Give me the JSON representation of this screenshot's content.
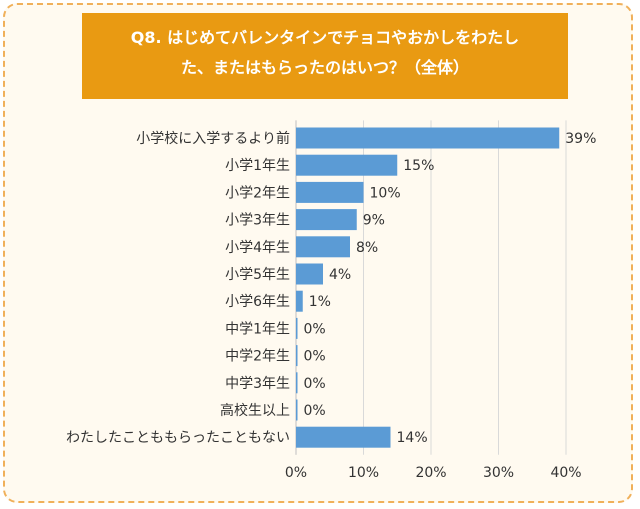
{
  "title": {
    "line1": "Q8. はじめてバレンタインでチョコやおかしをわたし",
    "line2": "た、またはもらったのはいつ？（全体）"
  },
  "colors": {
    "bar": "#5b9bd5",
    "title_bg": "#e99a12",
    "border": "#f0b05a",
    "background": "#fffaf0",
    "grid": "#d9d9d9"
  },
  "chart_data": {
    "type": "bar",
    "orientation": "horizontal",
    "categories": [
      "小学校に入学するより前",
      "小学1年生",
      "小学2年生",
      "小学3年生",
      "小学4年生",
      "小学5年生",
      "小学6年生",
      "中学1年生",
      "中学2年生",
      "中学3年生",
      "高校生以上",
      "わたしたことももらったこともない"
    ],
    "values": [
      39,
      15,
      10,
      9,
      8,
      4,
      1,
      0,
      0,
      0,
      0,
      14
    ],
    "data_labels": [
      "39%",
      "15%",
      "10%",
      "9%",
      "8%",
      "4%",
      "1%",
      "0%",
      "0%",
      "0%",
      "0%",
      "14%"
    ],
    "xlim": [
      0,
      40
    ],
    "x_ticks": [
      "0%",
      "10%",
      "20%",
      "30%",
      "40%"
    ],
    "grid": true,
    "unit": "%"
  }
}
